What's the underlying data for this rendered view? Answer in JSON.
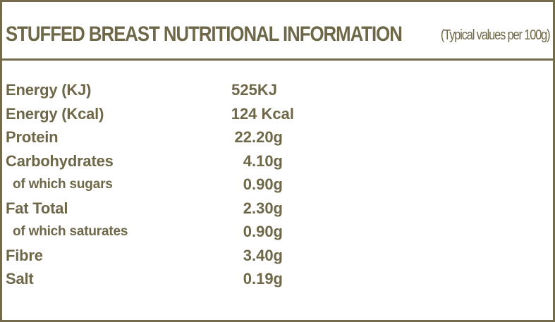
{
  "header": {
    "title": "STUFFED BREAST NUTRITIONAL INFORMATION",
    "subtitle": "(Typical values per 100g)"
  },
  "nutrition": [
    {
      "label": "Energy (KJ)",
      "value": "525KJ",
      "indent": false
    },
    {
      "label": "Energy (Kcal)",
      "value": "124 Kcal",
      "indent": false
    },
    {
      "label": "Protein",
      "value": "22.20g",
      "indent": false
    },
    {
      "label": "Carbohydrates",
      "value": "4.10g",
      "indent": false
    },
    {
      "label": "of which sugars",
      "value": "0.90g",
      "indent": true
    },
    {
      "label": "Fat Total",
      "value": "2.30g",
      "indent": false
    },
    {
      "label": "of which saturates",
      "value": "0.90g",
      "indent": true
    },
    {
      "label": "Fibre",
      "value": "3.40g",
      "indent": false
    },
    {
      "label": "Salt",
      "value": "0.19g",
      "indent": false
    }
  ],
  "colors": {
    "text": "#6e6849",
    "border": "#736b4c",
    "background": "#ffffff"
  }
}
